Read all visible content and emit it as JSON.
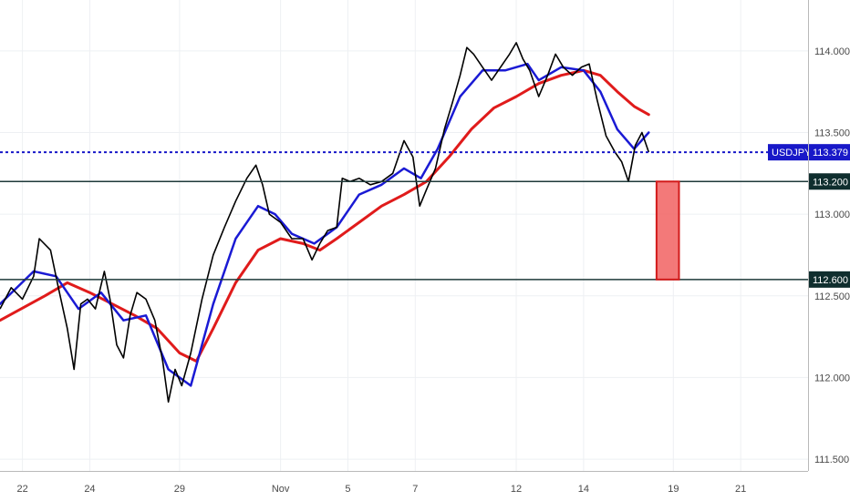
{
  "chart_data": {
    "type": "line",
    "symbol": "USDJPY",
    "y_ticks": [
      "114.000",
      "113.500",
      "113.000",
      "112.500",
      "112.000",
      "111.500"
    ],
    "x_ticks": [
      "22",
      "24",
      "29",
      "Nov",
      "5",
      "7",
      "12",
      "14",
      "19",
      "21"
    ],
    "ylim": [
      111.4,
      114.25
    ],
    "x_range": [
      0,
      72
    ],
    "grid": true,
    "x_tick_positions": [
      2,
      8,
      16,
      25,
      31,
      37,
      46,
      52,
      60,
      66
    ],
    "price_points": [
      [
        0,
        112.42
      ],
      [
        1,
        112.55
      ],
      [
        2,
        112.48
      ],
      [
        3,
        112.62
      ],
      [
        3.5,
        112.85
      ],
      [
        4.5,
        112.78
      ],
      [
        5.2,
        112.55
      ],
      [
        6,
        112.3
      ],
      [
        6.6,
        112.05
      ],
      [
        7.2,
        112.45
      ],
      [
        7.8,
        112.48
      ],
      [
        8.5,
        112.42
      ],
      [
        9.3,
        112.65
      ],
      [
        9.8,
        112.48
      ],
      [
        10.4,
        112.2
      ],
      [
        11,
        112.12
      ],
      [
        11.6,
        112.38
      ],
      [
        12.2,
        112.52
      ],
      [
        13,
        112.48
      ],
      [
        13.8,
        112.35
      ],
      [
        14.5,
        112.1
      ],
      [
        15,
        111.85
      ],
      [
        15.6,
        112.05
      ],
      [
        16.2,
        111.95
      ],
      [
        17,
        112.15
      ],
      [
        18,
        112.48
      ],
      [
        19,
        112.75
      ],
      [
        20,
        112.92
      ],
      [
        21,
        113.08
      ],
      [
        22,
        113.22
      ],
      [
        22.8,
        113.3
      ],
      [
        23.4,
        113.18
      ],
      [
        24,
        113.0
      ],
      [
        25,
        112.95
      ],
      [
        26,
        112.85
      ],
      [
        27,
        112.85
      ],
      [
        27.8,
        112.72
      ],
      [
        28.5,
        112.82
      ],
      [
        29.2,
        112.9
      ],
      [
        30,
        112.92
      ],
      [
        30.5,
        113.22
      ],
      [
        31.2,
        113.2
      ],
      [
        32,
        113.22
      ],
      [
        33,
        113.18
      ],
      [
        34,
        113.2
      ],
      [
        35,
        113.25
      ],
      [
        36,
        113.45
      ],
      [
        36.8,
        113.35
      ],
      [
        37.4,
        113.05
      ],
      [
        38,
        113.15
      ],
      [
        38.8,
        113.28
      ],
      [
        39.6,
        113.52
      ],
      [
        40.3,
        113.68
      ],
      [
        41,
        113.85
      ],
      [
        41.6,
        114.02
      ],
      [
        42.2,
        113.98
      ],
      [
        43,
        113.9
      ],
      [
        43.8,
        113.82
      ],
      [
        44.6,
        113.9
      ],
      [
        45.4,
        113.98
      ],
      [
        46,
        114.05
      ],
      [
        46.6,
        113.95
      ],
      [
        47.2,
        113.88
      ],
      [
        48,
        113.72
      ],
      [
        48.8,
        113.85
      ],
      [
        49.5,
        113.98
      ],
      [
        50.2,
        113.9
      ],
      [
        51,
        113.85
      ],
      [
        51.8,
        113.9
      ],
      [
        52.5,
        113.92
      ],
      [
        53.2,
        113.7
      ],
      [
        54,
        113.48
      ],
      [
        54.8,
        113.38
      ],
      [
        55.4,
        113.32
      ],
      [
        56,
        113.2
      ],
      [
        56.6,
        113.42
      ],
      [
        57.2,
        113.5
      ],
      [
        57.8,
        113.38
      ]
    ],
    "series": [
      {
        "values": [
          [
            0,
            112.35
          ],
          [
            4,
            112.5
          ],
          [
            6,
            112.58
          ],
          [
            8,
            112.52
          ],
          [
            10,
            112.45
          ],
          [
            12,
            112.38
          ],
          [
            14,
            112.3
          ],
          [
            16,
            112.15
          ],
          [
            17.5,
            112.1
          ],
          [
            19,
            112.3
          ],
          [
            21,
            112.58
          ],
          [
            23,
            112.78
          ],
          [
            25,
            112.85
          ],
          [
            27,
            112.82
          ],
          [
            28.5,
            112.78
          ],
          [
            30,
            112.85
          ],
          [
            32,
            112.95
          ],
          [
            34,
            113.05
          ],
          [
            36,
            113.12
          ],
          [
            38,
            113.2
          ],
          [
            40,
            113.35
          ],
          [
            42,
            113.52
          ],
          [
            44,
            113.65
          ],
          [
            46,
            113.72
          ],
          [
            48,
            113.8
          ],
          [
            50,
            113.85
          ],
          [
            52,
            113.88
          ],
          [
            53.5,
            113.85
          ],
          [
            55,
            113.75
          ],
          [
            56.5,
            113.66
          ],
          [
            57.8,
            113.61
          ]
        ]
      },
      {
        "values": [
          [
            0,
            112.45
          ],
          [
            3,
            112.65
          ],
          [
            5,
            112.62
          ],
          [
            7,
            112.42
          ],
          [
            9,
            112.52
          ],
          [
            11,
            112.35
          ],
          [
            13,
            112.38
          ],
          [
            15,
            112.05
          ],
          [
            17,
            111.95
          ],
          [
            19,
            112.45
          ],
          [
            21,
            112.85
          ],
          [
            23,
            113.05
          ],
          [
            24.5,
            113.0
          ],
          [
            26,
            112.88
          ],
          [
            28,
            112.82
          ],
          [
            30,
            112.92
          ],
          [
            32,
            113.12
          ],
          [
            34,
            113.18
          ],
          [
            36,
            113.28
          ],
          [
            37.5,
            113.22
          ],
          [
            39,
            113.4
          ],
          [
            41,
            113.72
          ],
          [
            43,
            113.88
          ],
          [
            45,
            113.88
          ],
          [
            47,
            113.92
          ],
          [
            48,
            113.82
          ],
          [
            50,
            113.9
          ],
          [
            52,
            113.88
          ],
          [
            53.5,
            113.75
          ],
          [
            55,
            113.52
          ],
          [
            56.5,
            113.4
          ],
          [
            57.8,
            113.5
          ]
        ]
      }
    ],
    "price_line": 113.379,
    "price_label": "USDJPY",
    "price_value": "113.379",
    "levels": [
      {
        "value": 113.2,
        "label": "113.200"
      },
      {
        "value": 112.6,
        "label": "112.600"
      }
    ],
    "target_box": {
      "x0": 58.5,
      "x1": 60.5,
      "y_top": 113.2,
      "y_bottom": 112.6
    }
  },
  "colors": {
    "price": "#000000",
    "fast_ma": "#1a1ad4",
    "slow_ma": "#e01b1b",
    "current_price": "#1818c8",
    "level_line": "#1f3a3a",
    "level_badge": "#0f2e2e",
    "target_fill": "#f26a6a",
    "target_border": "#d21b1b",
    "grid": "#eef0f3",
    "axis": "#b9b9b9"
  }
}
